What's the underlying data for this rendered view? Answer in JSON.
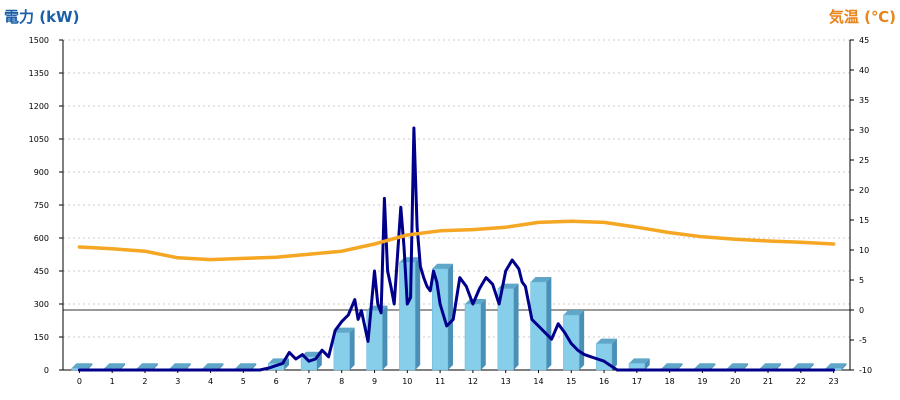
{
  "chart_data": {
    "type": "bar+line",
    "left_axis_title": "電力 (kW)",
    "right_axis_title": "気温 (℃)",
    "left_axis": {
      "ylim": [
        0,
        1500
      ],
      "ticks": [
        "0",
        "150",
        "300",
        "450",
        "600",
        "750",
        "900",
        "1050",
        "1200",
        "1350",
        "1500"
      ]
    },
    "right_axis": {
      "ylim": [
        -10,
        45
      ],
      "ticks": [
        "-10",
        "-5",
        "0",
        "5",
        "10",
        "15",
        "20",
        "25",
        "30",
        "35",
        "40",
        "45"
      ]
    },
    "categories": [
      "0",
      "1",
      "2",
      "3",
      "4",
      "5",
      "6",
      "7",
      "8",
      "9",
      "10",
      "11",
      "12",
      "13",
      "14",
      "15",
      "16",
      "17",
      "18",
      "19",
      "20",
      "21",
      "22",
      "23"
    ],
    "grid": true,
    "series": [
      {
        "kind": "bar",
        "axis": "left",
        "color": "#87ceeb",
        "values": [
          8,
          8,
          8,
          8,
          8,
          8,
          30,
          60,
          170,
          270,
          490,
          460,
          300,
          370,
          400,
          250,
          120,
          30,
          8,
          8,
          8,
          8,
          8,
          8
        ]
      },
      {
        "kind": "line",
        "axis": "left",
        "color": "#00008b",
        "x": [
          0,
          1,
          2,
          3,
          4,
          5,
          5.5,
          5.8,
          6,
          6.2,
          6.4,
          6.6,
          6.8,
          7,
          7.2,
          7.4,
          7.6,
          7.8,
          8,
          8.2,
          8.4,
          8.5,
          8.6,
          8.8,
          9,
          9.1,
          9.2,
          9.3,
          9.4,
          9.5,
          9.6,
          9.8,
          9.9,
          10,
          10.1,
          10.2,
          10.3,
          10.4,
          10.5,
          10.6,
          10.7,
          10.8,
          10.9,
          11,
          11.2,
          11.4,
          11.6,
          11.8,
          12,
          12.2,
          12.4,
          12.6,
          12.8,
          13,
          13.2,
          13.4,
          13.5,
          13.6,
          13.8,
          14,
          14.2,
          14.4,
          14.6,
          14.8,
          15,
          15.2,
          15.4,
          15.6,
          15.8,
          16,
          16.2,
          16.4,
          16.6,
          16.8,
          17,
          18,
          19,
          20,
          21,
          22,
          23
        ],
        "values": [
          0,
          0,
          0,
          0,
          0,
          0,
          0,
          10,
          20,
          30,
          80,
          50,
          70,
          40,
          50,
          90,
          60,
          180,
          220,
          250,
          320,
          230,
          270,
          130,
          450,
          300,
          260,
          780,
          450,
          380,
          300,
          740,
          560,
          300,
          330,
          1100,
          650,
          470,
          420,
          380,
          360,
          450,
          400,
          300,
          200,
          230,
          420,
          380,
          300,
          370,
          420,
          390,
          300,
          450,
          500,
          460,
          400,
          380,
          230,
          200,
          170,
          140,
          210,
          170,
          120,
          90,
          70,
          60,
          50,
          40,
          20,
          0,
          0,
          0,
          0,
          0,
          0,
          0,
          0,
          0,
          0
        ]
      },
      {
        "kind": "line",
        "axis": "right",
        "color": "#f5a623",
        "x": [
          0,
          1,
          2,
          3,
          4,
          5,
          6,
          7,
          8,
          9,
          10,
          11,
          12,
          13,
          14,
          15,
          16,
          17,
          18,
          19,
          20,
          21,
          22,
          23
        ],
        "values": [
          10.5,
          10.2,
          9.8,
          8.7,
          8.4,
          8.6,
          8.8,
          9.3,
          9.8,
          11,
          12.5,
          13.2,
          13.4,
          13.8,
          14.6,
          14.8,
          14.6,
          13.8,
          12.9,
          12.2,
          11.8,
          11.5,
          11.3,
          11
        ]
      }
    ]
  }
}
